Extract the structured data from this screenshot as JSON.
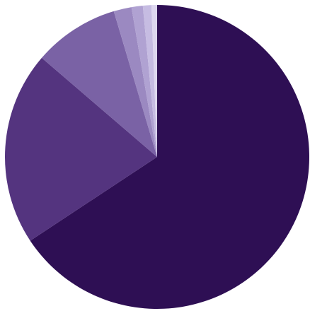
{
  "chart_data": {
    "type": "pie",
    "title": "",
    "legend": "none",
    "labels_shown": false,
    "start_angle_deg": 0,
    "direction": "clockwise",
    "slices": [
      {
        "value": 65.7,
        "color": "#2e0f54"
      },
      {
        "value": 20.6,
        "color": "#54347f"
      },
      {
        "value": 9.1,
        "color": "#7a62a5"
      },
      {
        "value": 1.9,
        "color": "#9b89c1"
      },
      {
        "value": 1.2,
        "color": "#b0a2d2"
      },
      {
        "value": 0.9,
        "color": "#c6bce2"
      },
      {
        "value": 0.6,
        "color": "#ddd7ef"
      }
    ]
  }
}
